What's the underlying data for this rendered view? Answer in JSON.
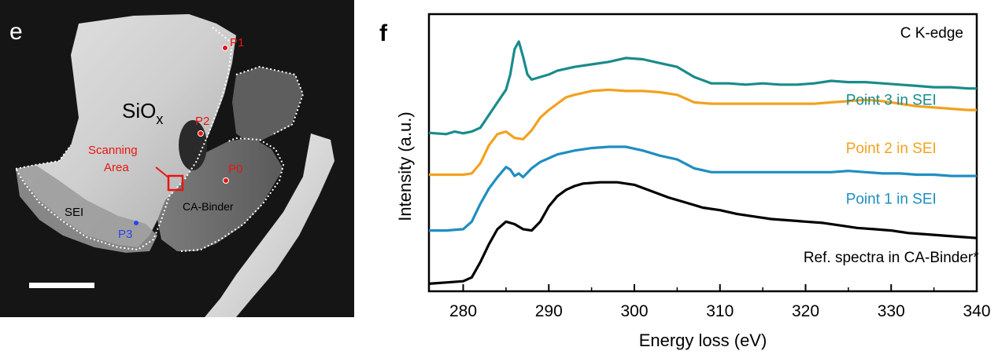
{
  "panel_e": {
    "letter": "e",
    "sio_main": "SiO",
    "sio_sub": "x",
    "labels": {
      "p0": "P0",
      "p1": "P1",
      "p2": "P2",
      "p3": "P3",
      "sei": "SEI",
      "binder": "CA-Binder",
      "scan_line1": "Scanning",
      "scan_line2": "Area"
    },
    "colors": {
      "background": "#151515",
      "red": "#e8150f",
      "blue": "#2a45f0"
    }
  },
  "chart_data": {
    "type": "line",
    "panel_letter": "f",
    "title": "C K-edge",
    "xlabel": "Energy loss (eV)",
    "ylabel": "Intensity (a.u.)",
    "xlim": [
      276,
      340
    ],
    "ylim": [
      0,
      10
    ],
    "xticks": [
      "280",
      "290",
      "300",
      "310",
      "320",
      "330",
      "340"
    ],
    "yticks_shown": false,
    "series": [
      {
        "name": "Point 3 in SEI",
        "color": "#1a8b8b",
        "label_x": 330,
        "label_y": 7.1,
        "x": [
          276,
          278,
          279,
          280,
          281,
          282,
          283,
          284,
          285,
          285.5,
          286,
          286.5,
          287,
          287.5,
          288,
          289,
          290,
          291,
          293,
          295,
          297,
          299,
          301,
          303,
          305,
          307,
          309,
          311,
          313,
          315,
          317,
          319,
          321,
          323,
          325,
          327,
          329,
          331,
          333,
          335,
          337,
          339,
          340
        ],
        "y": [
          6.0,
          5.95,
          6.05,
          5.98,
          6.05,
          6.2,
          6.7,
          7.2,
          7.7,
          8.3,
          9.3,
          9.6,
          9.0,
          8.3,
          8.1,
          8.2,
          8.3,
          8.45,
          8.6,
          8.7,
          8.8,
          8.95,
          8.9,
          8.75,
          8.6,
          8.2,
          7.95,
          7.95,
          7.9,
          7.95,
          7.9,
          7.9,
          7.95,
          8.05,
          8.0,
          8.0,
          7.95,
          7.9,
          7.85,
          7.8,
          7.8,
          7.75,
          7.75
        ]
      },
      {
        "name": "Point 2 in SEI",
        "color": "#f3a11f",
        "label_x": 330,
        "label_y": 5.2,
        "x": [
          276,
          278,
          280,
          281,
          282,
          283,
          284,
          285,
          286,
          287,
          288,
          289,
          290,
          291,
          292,
          293,
          295,
          297,
          299,
          301,
          303,
          305,
          307,
          309,
          311,
          313,
          315,
          317,
          319,
          321,
          323,
          325,
          327,
          329,
          331,
          333,
          335,
          337,
          339,
          340
        ],
        "y": [
          4.35,
          4.35,
          4.35,
          4.4,
          4.8,
          5.5,
          5.95,
          6.05,
          5.8,
          5.75,
          6.1,
          6.6,
          6.9,
          7.15,
          7.4,
          7.5,
          7.65,
          7.7,
          7.65,
          7.65,
          7.6,
          7.5,
          7.2,
          7.15,
          7.15,
          7.15,
          7.15,
          7.15,
          7.15,
          7.15,
          7.2,
          7.25,
          7.3,
          7.25,
          7.15,
          7.05,
          7.0,
          6.95,
          6.9,
          6.9
        ]
      },
      {
        "name": "Point 1 in SEI",
        "color": "#1f8ec1",
        "label_x": 330,
        "label_y": 3.2,
        "x": [
          276,
          278,
          280,
          281,
          282,
          283,
          284,
          285,
          285.5,
          286,
          286.5,
          287,
          288,
          289,
          290,
          291,
          293,
          295,
          297,
          299,
          301,
          303,
          305,
          307,
          309,
          311,
          313,
          315,
          317,
          319,
          321,
          323,
          325,
          327,
          329,
          331,
          333,
          335,
          337,
          339,
          340
        ],
        "y": [
          2.15,
          2.15,
          2.2,
          2.5,
          3.2,
          3.8,
          4.25,
          4.65,
          4.55,
          4.3,
          4.4,
          4.25,
          4.6,
          4.85,
          5.0,
          5.15,
          5.3,
          5.4,
          5.45,
          5.45,
          5.3,
          5.1,
          4.95,
          4.6,
          4.45,
          4.45,
          4.45,
          4.45,
          4.45,
          4.45,
          4.45,
          4.45,
          4.5,
          4.45,
          4.4,
          4.4,
          4.35,
          4.35,
          4.3,
          4.3,
          4.3
        ]
      },
      {
        "name": "Ref. spectra in CA-Binder*",
        "color": "#000000",
        "label_x": 330,
        "label_y": 0.9,
        "x": [
          276,
          278,
          280,
          281,
          282,
          283,
          284,
          285,
          286,
          287,
          288,
          289,
          290,
          291,
          292,
          293,
          294,
          296,
          298,
          300,
          302,
          304,
          306,
          308,
          310,
          312,
          314,
          316,
          318,
          320,
          322,
          324,
          326,
          328,
          330,
          332,
          334,
          336,
          338,
          340
        ],
        "y": [
          0.05,
          0.1,
          0.15,
          0.3,
          0.9,
          1.6,
          2.2,
          2.5,
          2.4,
          2.2,
          2.15,
          2.5,
          3.1,
          3.5,
          3.75,
          3.9,
          4.0,
          4.05,
          4.05,
          3.95,
          3.7,
          3.45,
          3.25,
          3.05,
          2.95,
          2.8,
          2.7,
          2.6,
          2.55,
          2.5,
          2.45,
          2.35,
          2.25,
          2.2,
          2.15,
          2.05,
          2.0,
          1.95,
          1.9,
          1.85
        ]
      }
    ]
  }
}
